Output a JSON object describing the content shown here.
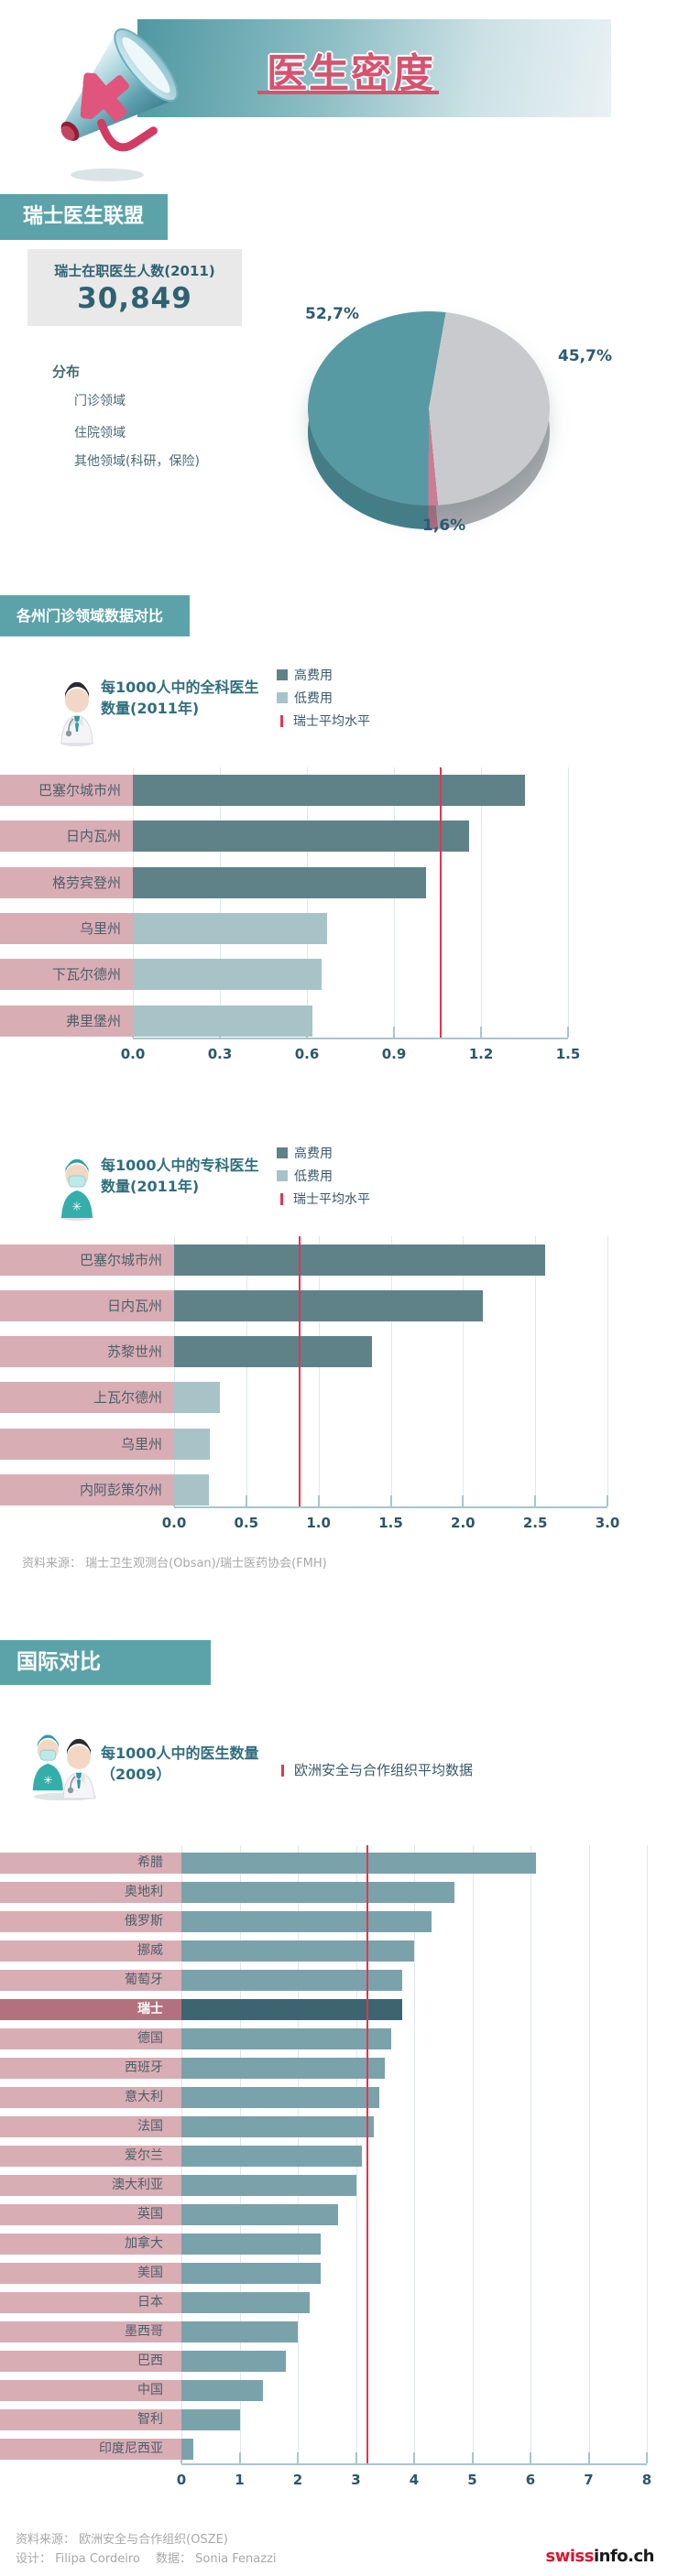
{
  "header": {
    "title": "医生密度",
    "megaphone_icon": "megaphone-with-medical-cross-icon"
  },
  "sections": {
    "fmh": {
      "heading": "瑞士医生联盟",
      "stat": {
        "label": "瑞士在职医生人数(2011)",
        "value": "30,849"
      },
      "distribution_title": "分布",
      "distribution_legend": [
        {
          "label": "门诊领域",
          "color": "#57959e"
        },
        {
          "label": "住院领域",
          "color": "#c7c8cb"
        },
        {
          "label": "其他领域(科研，保险)",
          "color": "#c77f95"
        }
      ]
    },
    "cantons": {
      "heading": "各州门诊领域数据对比",
      "gp_title_lines": [
        "每1000人中的全科医生",
        "数量(2011年)"
      ],
      "sp_title_lines": [
        "每1000人中的专科医生",
        "数量(2011年)"
      ],
      "legend": {
        "high": "高费用",
        "low": "低费用",
        "avg": "瑞士平均水平"
      },
      "source": "资料来源： 瑞士卫生观测台(Obsan)/瑞士医药协会(FMH)"
    },
    "international": {
      "heading": "国际对比",
      "title_lines": [
        "每1000人中的医生数量",
        "（2009）"
      ],
      "avg_label": "欧洲安全与合作组织平均数据",
      "source_line1": "资料来源： 欧洲安全与合作组织(OSZE)",
      "credits": "设计： Filipa Cordeiro　 数据： Sonia Fenazzi"
    }
  },
  "footer_logo": {
    "part1": "swiss",
    "part2": "info.ch"
  },
  "colors": {
    "title": "#d5536f",
    "band": "#5ba3a9",
    "high": "#5f8289",
    "low": "#a7c3c7",
    "intl": "#7aa2aa",
    "intl_highlight": "#3c6571",
    "strip": "#d9adb4",
    "strip_highlight": "#b3717e",
    "average_line": "#e23553"
  },
  "chart_data": [
    {
      "type": "pie",
      "title": "分布",
      "labels": [
        "门诊领域",
        "住院领域",
        "其他领域(科研，保险)"
      ],
      "values": [
        52.7,
        45.7,
        1.6
      ],
      "value_labels": [
        "52,7%",
        "45,7%",
        "1,6%"
      ],
      "colors": [
        "#579aa3",
        "#c9cacd",
        "#cb7d93"
      ],
      "side_colors": [
        "#41808a",
        "#a9aaae",
        "#ad6b81"
      ],
      "start_angle_deg": 10,
      "draw_order": [
        1,
        2,
        0
      ],
      "note": "3D pie, clockwise from top: 住院领域 45.7%, 其他领域 1.6%, 门诊领域 52.7%"
    },
    {
      "type": "bar",
      "title": "每1000人中的全科医生数量(2011年)",
      "categories": [
        "巴塞尔城市州",
        "日内瓦州",
        "格劳宾登州",
        "乌里州",
        "下瓦尔德州",
        "弗里堡州"
      ],
      "values": [
        1.35,
        1.16,
        1.01,
        0.67,
        0.65,
        0.62
      ],
      "bar_class": [
        "high",
        "high",
        "high",
        "low",
        "low",
        "low"
      ],
      "average": 1.06,
      "average_label": "瑞士平均水平",
      "xlim": [
        0,
        1.5
      ],
      "tick_values": [
        0,
        0.3,
        0.6,
        0.9,
        1.2,
        1.5
      ],
      "tick_labels": [
        "0.0",
        "0.3",
        "0.6",
        "0.9",
        "1.2",
        "1.5"
      ],
      "legend": [
        "高费用",
        "低费用",
        "瑞士平均水平"
      ],
      "grid": true,
      "orientation": "horizontal"
    },
    {
      "type": "bar",
      "title": "每1000人中的专科医生数量(2011年)",
      "categories": [
        "巴塞尔城市州",
        "日内瓦州",
        "苏黎世州",
        "上瓦尔德州",
        "乌里州",
        "内阿彭策尔州"
      ],
      "values": [
        2.57,
        2.14,
        1.37,
        0.32,
        0.25,
        0.24
      ],
      "bar_class": [
        "high",
        "high",
        "high",
        "low",
        "low",
        "low"
      ],
      "average": 0.87,
      "average_label": "瑞士平均水平",
      "xlim": [
        0,
        3
      ],
      "tick_values": [
        0,
        0.5,
        1,
        1.5,
        2,
        2.5,
        3
      ],
      "tick_labels": [
        "0.0",
        "0.5",
        "1.0",
        "1.5",
        "2.0",
        "2.5",
        "3.0"
      ],
      "legend": [
        "高费用",
        "低费用",
        "瑞士平均水平"
      ],
      "grid": true,
      "orientation": "horizontal"
    },
    {
      "type": "bar",
      "title": "每1000人中的医生数量（2009）",
      "categories": [
        "希腊",
        "奥地利",
        "俄罗斯",
        "挪威",
        "葡萄牙",
        "瑞士",
        "德国",
        "西班牙",
        "意大利",
        "法国",
        "爱尔兰",
        "澳大利亚",
        "英国",
        "加拿大",
        "美国",
        "日本",
        "墨西哥",
        "巴西",
        "中国",
        "智利",
        "印度尼西亚"
      ],
      "values": [
        6.1,
        4.7,
        4.3,
        4.0,
        3.8,
        3.8,
        3.6,
        3.5,
        3.4,
        3.3,
        3.1,
        3.0,
        2.7,
        2.4,
        2.4,
        2.2,
        2.0,
        1.8,
        1.4,
        1.0,
        0.2
      ],
      "highlight_index": 5,
      "average": 3.2,
      "average_label": "欧洲安全与合作组织平均数据",
      "xlim": [
        0,
        8
      ],
      "tick_values": [
        0,
        1,
        2,
        3,
        4,
        5,
        6,
        7,
        8
      ],
      "tick_labels": [
        "0",
        "1",
        "2",
        "3",
        "4",
        "5",
        "6",
        "7",
        "8"
      ],
      "grid": true,
      "orientation": "horizontal"
    }
  ]
}
